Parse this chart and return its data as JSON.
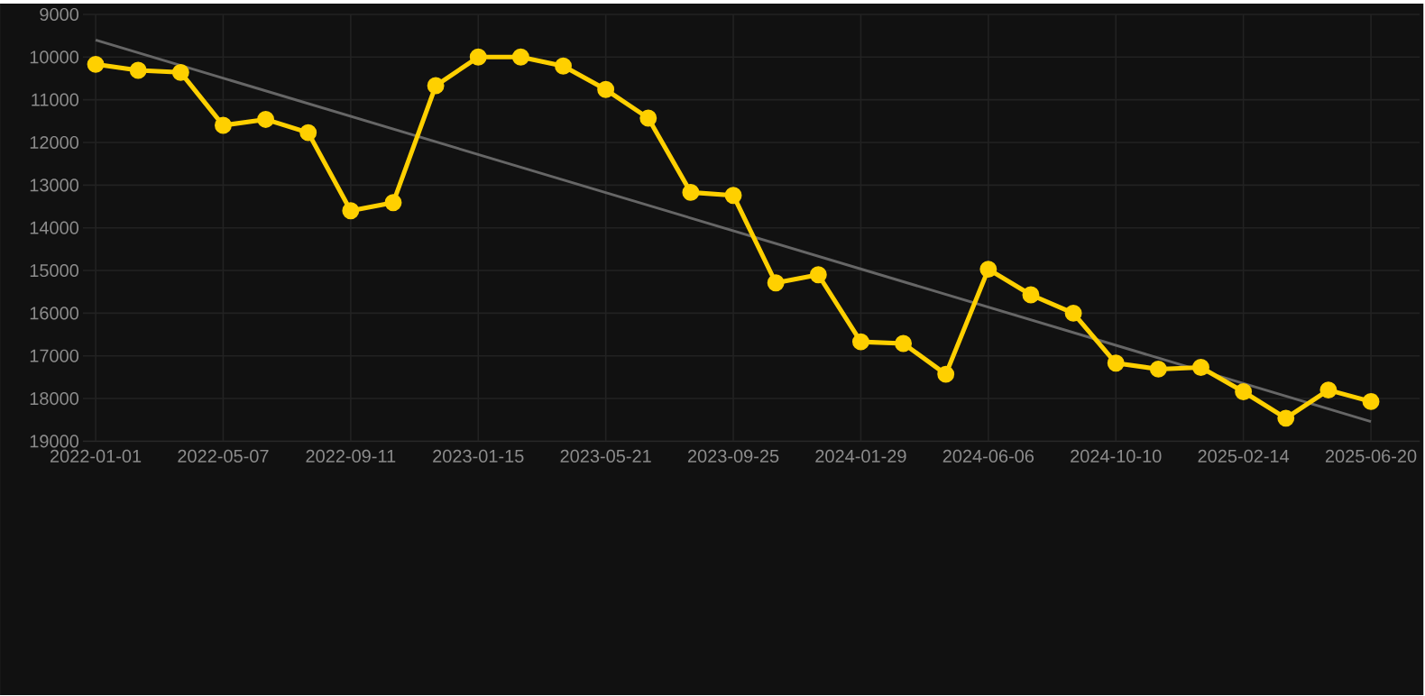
{
  "chart_data": {
    "type": "line",
    "categories": [
      "2022-01-01",
      null,
      null,
      "2022-05-07",
      null,
      null,
      "2022-09-11",
      null,
      null,
      "2023-01-15",
      null,
      null,
      "2023-05-21",
      null,
      null,
      "2023-09-25",
      null,
      null,
      "2024-01-29",
      null,
      null,
      "2024-06-06",
      null,
      null,
      "2024-10-10",
      null,
      null,
      "2025-02-14",
      null,
      null,
      "2025-06-20"
    ],
    "series": [
      {
        "color": "#ffd000",
        "marker": "circle",
        "values": [
          10170,
          10310,
          10360,
          11600,
          11460,
          11770,
          13600,
          13410,
          10670,
          10000,
          10000,
          10210,
          10760,
          11430,
          13170,
          13240,
          15290,
          15100,
          16670,
          16710,
          17430,
          14970,
          15570,
          16000,
          17170,
          17310,
          17270,
          17840,
          18460,
          17800,
          18070
        ]
      },
      {
        "type": "line",
        "color": "#666666",
        "marker": "none",
        "values": [
          9600,
          null,
          null,
          null,
          null,
          null,
          null,
          null,
          null,
          null,
          null,
          null,
          null,
          null,
          null,
          null,
          null,
          null,
          null,
          null,
          null,
          null,
          null,
          null,
          null,
          null,
          null,
          null,
          null,
          null,
          18540
        ]
      }
    ],
    "ylim": [
      19000,
      9000
    ],
    "yticks": [
      9000,
      10000,
      11000,
      12000,
      13000,
      14000,
      15000,
      16000,
      17000,
      18000,
      19000
    ],
    "grid": true
  }
}
